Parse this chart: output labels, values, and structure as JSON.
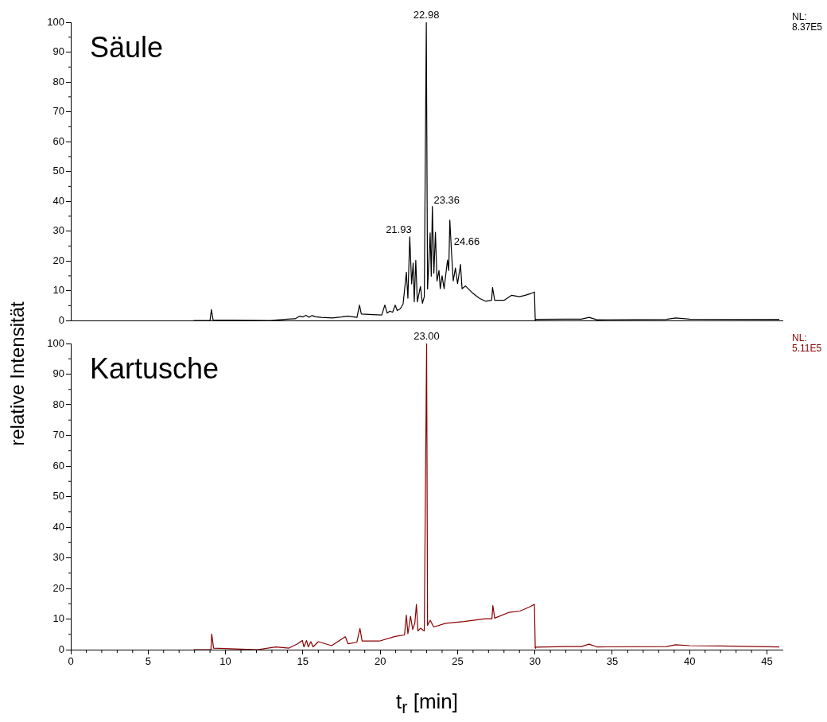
{
  "chart_data": [
    {
      "type": "line",
      "title": "Säule",
      "ylabel": "relative Intensität",
      "xlim": [
        0,
        46
      ],
      "ylim": [
        0,
        100
      ],
      "yticks": [
        0,
        10,
        20,
        30,
        40,
        50,
        60,
        70,
        80,
        90,
        100
      ],
      "tick_labels": "y",
      "series": [
        {
          "color": "#000000",
          "x": [
            7.94,
            9.0,
            9.09,
            9.2,
            12.9,
            13.5,
            14.0,
            14.5,
            14.8,
            15.0,
            15.2,
            15.4,
            15.6,
            15.8,
            16.2,
            16.9,
            17.5,
            17.9,
            18.5,
            18.66,
            18.78,
            19.5,
            20.1,
            20.3,
            20.45,
            20.63,
            20.8,
            20.97,
            21.1,
            21.3,
            21.48,
            21.69,
            21.79,
            21.91,
            22.03,
            22.13,
            22.2,
            22.3,
            22.4,
            22.6,
            22.73,
            22.85,
            22.98,
            23.06,
            23.15,
            23.23,
            23.3,
            23.37,
            23.47,
            23.57,
            23.67,
            23.8,
            23.88,
            24.0,
            24.13,
            24.35,
            24.43,
            24.5,
            24.6,
            24.72,
            24.86,
            25.0,
            25.19,
            25.29,
            25.51,
            25.94,
            26.4,
            26.8,
            27.2,
            27.26,
            27.4,
            28.0,
            28.5,
            29.0,
            29.37,
            29.7,
            29.97,
            30.02,
            30.05,
            32.0,
            33.0,
            33.5,
            34.0,
            38.5,
            39.1,
            40.0,
            45.8
          ],
          "values": [
            0,
            0,
            3.7,
            0.2,
            0,
            0.3,
            0.5,
            0.6,
            1.5,
            1.2,
            1.8,
            1.1,
            1.7,
            1.3,
            1.1,
            0.9,
            1.2,
            1.5,
            1.1,
            5.2,
            2.2,
            2.0,
            1.9,
            5.2,
            2.5,
            3.2,
            2.8,
            5.2,
            3.4,
            4.0,
            5.6,
            16.2,
            7.5,
            28.1,
            12.3,
            19.3,
            6.3,
            20.2,
            6.3,
            11.4,
            5.8,
            8.0,
            100,
            10.6,
            20.0,
            29.4,
            14.9,
            38.3,
            15.9,
            29.6,
            13.3,
            16.8,
            10.7,
            15.0,
            10.7,
            20.3,
            16.8,
            33.7,
            23.7,
            13.3,
            17.6,
            12.4,
            18.8,
            10.7,
            11.6,
            9.4,
            7.5,
            6.5,
            6.8,
            11.1,
            6.8,
            6.8,
            8.5,
            8.0,
            8.5,
            9.0,
            9.6,
            0.2,
            0.4,
            0.5,
            0.5,
            1.1,
            0.3,
            0.4,
            0.9,
            0.5,
            0.4
          ]
        }
      ],
      "annotations": [
        {
          "text": "22.98",
          "x": 22.98,
          "y": 100
        },
        {
          "text": "21.93",
          "x": 21.93,
          "y": 28
        },
        {
          "text": "23.36",
          "x": 23.36,
          "y": 38
        },
        {
          "text": "24.66",
          "x": 24.66,
          "y": 24
        },
        "NL: 8.37E5"
      ]
    },
    {
      "type": "line",
      "title": "Kartusche",
      "xlabel": "t$_{r}$ [min]",
      "xlim": [
        0,
        46
      ],
      "xticks": [
        0,
        5,
        10,
        15,
        20,
        25,
        30,
        35,
        40,
        45
      ],
      "ylim": [
        0,
        100
      ],
      "yticks": [
        0,
        10,
        20,
        30,
        40,
        50,
        60,
        70,
        80,
        90,
        100
      ],
      "series": [
        {
          "color": "#8b0000",
          "x": [
            7.94,
            9.06,
            9.11,
            9.23,
            12.06,
            13.26,
            14.1,
            14.63,
            14.97,
            15.07,
            15.24,
            15.35,
            15.52,
            15.66,
            16.0,
            16.86,
            17.75,
            17.92,
            18.49,
            18.69,
            18.83,
            19.94,
            20.97,
            21.57,
            21.69,
            21.79,
            21.96,
            22.1,
            22.24,
            22.34,
            22.44,
            22.6,
            22.85,
            23.0,
            23.06,
            23.23,
            23.46,
            24.23,
            25.43,
            26.8,
            27.22,
            27.28,
            27.4,
            28.34,
            29.03,
            29.63,
            29.97,
            30.02,
            30.05,
            32.0,
            33.0,
            33.5,
            34.0,
            38.5,
            39.1,
            40.0,
            42.0,
            45.8
          ],
          "values": [
            0,
            0,
            5.1,
            0.5,
            0,
            0.9,
            0.5,
            1.8,
            3.0,
            0.9,
            3.0,
            0.9,
            2.6,
            0.9,
            2.6,
            1.3,
            4.2,
            1.9,
            2.4,
            6.9,
            2.8,
            2.8,
            4.3,
            4.8,
            11.3,
            5.2,
            10.9,
            6.6,
            8.7,
            14.8,
            6.1,
            7.0,
            6.1,
            100,
            7.9,
            9.6,
            7.4,
            8.6,
            9.2,
            10.1,
            10.1,
            14.4,
            10.3,
            12.2,
            12.6,
            13.9,
            14.8,
            0.5,
            0.8,
            1.0,
            1.0,
            1.8,
            0.9,
            1.0,
            1.6,
            1.3,
            1.2,
            0.9
          ]
        }
      ],
      "annotations": [
        {
          "text": "23.00",
          "x": 23.0,
          "y": 100
        },
        "NL: 5.11E5"
      ]
    }
  ]
}
